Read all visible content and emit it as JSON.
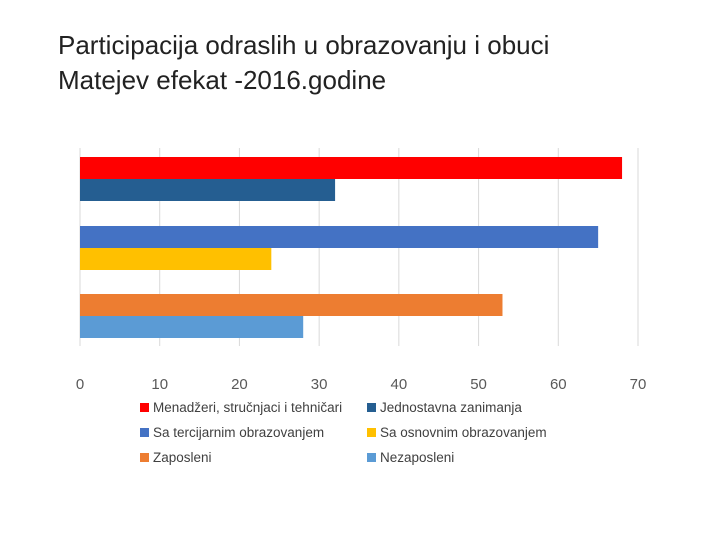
{
  "title": {
    "line1": "Participacija odraslih u obrazovanju i obuci",
    "line2": "Matejev efekat -2016.godine"
  },
  "chart_data": {
    "type": "bar",
    "orientation": "horizontal",
    "title": "",
    "xlabel": "",
    "ylabel": "",
    "xlim": [
      0,
      70
    ],
    "x_ticks": [
      0,
      10,
      20,
      30,
      40,
      50,
      60,
      70
    ],
    "grid": "vertical",
    "legend_position": "bottom",
    "groups": [
      {
        "series": [
          {
            "name": "Menadžeri, stručnjaci i tehničari",
            "value": 68,
            "color": "#ff0000"
          },
          {
            "name": "Jednostavna zanimanja",
            "value": 32,
            "color": "#255e91"
          }
        ]
      },
      {
        "series": [
          {
            "name": "Sa tercijarnim obrazovanjem",
            "value": 65,
            "color": "#4472c4"
          },
          {
            "name": "Sa osnovnim obrazovanjem",
            "value": 24,
            "color": "#ffc000"
          }
        ]
      },
      {
        "series": [
          {
            "name": "Zaposleni",
            "value": 53,
            "color": "#ed7d31"
          },
          {
            "name": "Nezaposleni",
            "value": 28,
            "color": "#5b9bd5"
          }
        ]
      }
    ]
  }
}
